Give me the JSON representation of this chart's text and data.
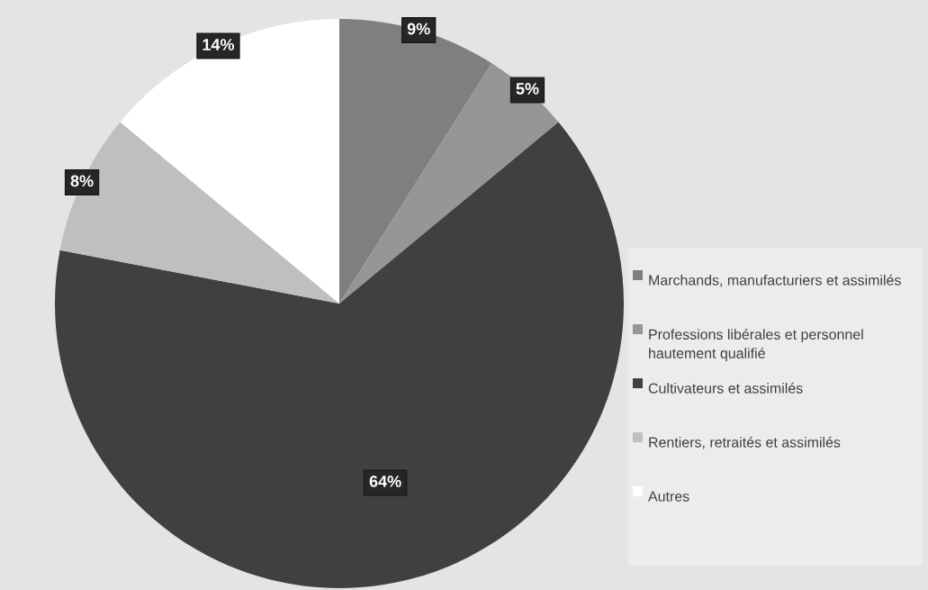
{
  "chart_data": {
    "type": "pie",
    "categories": [
      "Marchands, manufacturiers et assimilés",
      "Professions libérales et personnel hautement qualifié",
      "Cultivateurs et assimilés",
      "Rentiers, retraités et assimilés",
      "Autres"
    ],
    "values": [
      9,
      5,
      64,
      8,
      14
    ],
    "colors": [
      "#7f7f7f",
      "#969696",
      "#404040",
      "#bfbfbf",
      "#ffffff"
    ],
    "value_labels": [
      "9%",
      "5%",
      "64%",
      "8%",
      "14%"
    ],
    "legend": "right"
  }
}
